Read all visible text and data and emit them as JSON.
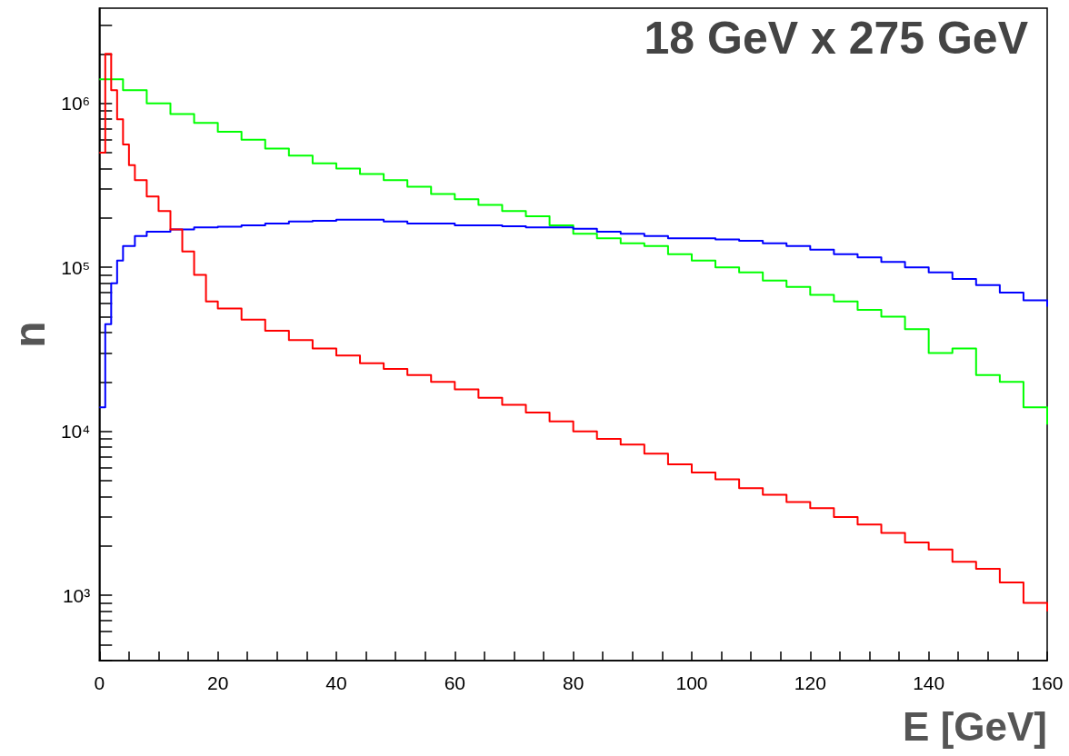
{
  "chart_data": {
    "type": "step",
    "title": "18 GeV x 275 GeV",
    "xlabel": "E [GeV]",
    "ylabel": "n",
    "log": "y",
    "grid": false,
    "marker": "none",
    "line_style": "solid",
    "xlim": [
      0,
      160
    ],
    "xticks": [
      0,
      {
        "value": 5,
        "label": null
      },
      {
        "value": 10,
        "label": null
      },
      {
        "value": 15,
        "label": null
      },
      20,
      {
        "value": 25,
        "label": null
      },
      {
        "value": 30,
        "label": null
      },
      {
        "value": 35,
        "label": null
      },
      40,
      {
        "value": 45,
        "label": null
      },
      {
        "value": 50,
        "label": null
      },
      {
        "value": 55,
        "label": null
      },
      60,
      {
        "value": 65,
        "label": null
      },
      {
        "value": 70,
        "label": null
      },
      {
        "value": 75,
        "label": null
      },
      80,
      {
        "value": 85,
        "label": null
      },
      {
        "value": 90,
        "label": null
      },
      {
        "value": 95,
        "label": null
      },
      100,
      {
        "value": 105,
        "label": null
      },
      {
        "value": 110,
        "label": null
      },
      {
        "value": 115,
        "label": null
      },
      120,
      {
        "value": 125,
        "label": null
      },
      {
        "value": 130,
        "label": null
      },
      {
        "value": 135,
        "label": null
      },
      140,
      {
        "value": 145,
        "label": null
      },
      {
        "value": 150,
        "label": null
      },
      {
        "value": 155,
        "label": null
      },
      160
    ],
    "ylim": [
      400,
      3800000
    ],
    "yticks": [
      {
        "value": 400,
        "label": null
      },
      {
        "value": 500,
        "label": null
      },
      {
        "value": 600,
        "label": null
      },
      {
        "value": 700,
        "label": null
      },
      {
        "value": 800,
        "label": null
      },
      {
        "value": 900,
        "label": null
      },
      {
        "value": 1000,
        "label": "10³"
      },
      {
        "value": 2000,
        "label": null
      },
      {
        "value": 3000,
        "label": null
      },
      {
        "value": 4000,
        "label": null
      },
      {
        "value": 5000,
        "label": null
      },
      {
        "value": 6000,
        "label": null
      },
      {
        "value": 7000,
        "label": null
      },
      {
        "value": 8000,
        "label": null
      },
      {
        "value": 9000,
        "label": null
      },
      {
        "value": 10000,
        "label": "10⁴"
      },
      {
        "value": 20000,
        "label": null
      },
      {
        "value": 30000,
        "label": null
      },
      {
        "value": 40000,
        "label": null
      },
      {
        "value": 50000,
        "label": null
      },
      {
        "value": 60000,
        "label": null
      },
      {
        "value": 70000,
        "label": null
      },
      {
        "value": 80000,
        "label": null
      },
      {
        "value": 90000,
        "label": null
      },
      {
        "value": 100000,
        "label": "10⁵"
      },
      {
        "value": 200000,
        "label": null
      },
      {
        "value": 300000,
        "label": null
      },
      {
        "value": 400000,
        "label": null
      },
      {
        "value": 500000,
        "label": null
      },
      {
        "value": 600000,
        "label": null
      },
      {
        "value": 700000,
        "label": null
      },
      {
        "value": 800000,
        "label": null
      },
      {
        "value": 900000,
        "label": null
      },
      {
        "value": 1000000,
        "label": "10⁶"
      },
      {
        "value": 2000000,
        "label": null
      },
      {
        "value": 3000000,
        "label": null
      }
    ],
    "series": [
      {
        "color": "#00ff00",
        "x": [
          0,
          4,
          8,
          12,
          16,
          20,
          24,
          28,
          32,
          36,
          40,
          44,
          48,
          52,
          56,
          60,
          64,
          68,
          72,
          76,
          80,
          84,
          88,
          92,
          96,
          100,
          104,
          108,
          112,
          116,
          120,
          124,
          128,
          132,
          136,
          140,
          144,
          148,
          152,
          156,
          160
        ],
        "values": [
          1400000,
          1200000,
          1000000,
          860000,
          760000,
          670000,
          600000,
          530000,
          480000,
          430000,
          400000,
          370000,
          340000,
          310000,
          280000,
          260000,
          240000,
          220000,
          205000,
          180000,
          160000,
          150000,
          140000,
          135000,
          120000,
          110000,
          100000,
          93000,
          83000,
          76000,
          68000,
          62000,
          55000,
          50000,
          42000,
          30000,
          32000,
          22000,
          20000,
          14000,
          11000
        ]
      },
      {
        "color": "#0000ff",
        "x": [
          0,
          1,
          2,
          3,
          4,
          6,
          8,
          12,
          16,
          20,
          24,
          28,
          32,
          36,
          40,
          44,
          48,
          52,
          56,
          60,
          64,
          68,
          72,
          76,
          80,
          84,
          88,
          92,
          96,
          100,
          104,
          108,
          112,
          116,
          120,
          124,
          128,
          132,
          136,
          140,
          144,
          148,
          152,
          156,
          160
        ],
        "values": [
          14000,
          45000,
          80000,
          110000,
          135000,
          155000,
          165000,
          170000,
          175000,
          177000,
          180000,
          185000,
          190000,
          192000,
          195000,
          195000,
          190000,
          185000,
          185000,
          180000,
          180000,
          178000,
          175000,
          175000,
          172000,
          165000,
          160000,
          155000,
          150000,
          150000,
          148000,
          145000,
          140000,
          135000,
          128000,
          120000,
          115000,
          108000,
          100000,
          93000,
          85000,
          78000,
          70000,
          63000,
          57500
        ]
      },
      {
        "color": "#ff0000",
        "x": [
          0,
          1,
          2,
          3,
          4,
          5,
          6,
          8,
          10,
          12,
          14,
          16,
          18,
          20,
          24,
          28,
          32,
          36,
          40,
          44,
          48,
          52,
          56,
          60,
          64,
          68,
          72,
          76,
          80,
          84,
          88,
          92,
          96,
          100,
          104,
          108,
          112,
          116,
          120,
          124,
          128,
          132,
          136,
          140,
          144,
          148,
          152,
          156,
          160
        ],
        "values": [
          500000,
          2000000,
          1200000,
          800000,
          560000,
          420000,
          340000,
          270000,
          220000,
          170000,
          125000,
          90000,
          62000,
          56000,
          48000,
          41000,
          36000,
          32000,
          29000,
          26000,
          24000,
          22000,
          20000,
          18000,
          16000,
          14500,
          13000,
          11500,
          10000,
          9000,
          8300,
          7300,
          6300,
          5600,
          5100,
          4500,
          4100,
          3700,
          3400,
          3000,
          2700,
          2400,
          2100,
          1900,
          1600,
          1450,
          1200,
          900,
          800
        ]
      }
    ]
  }
}
